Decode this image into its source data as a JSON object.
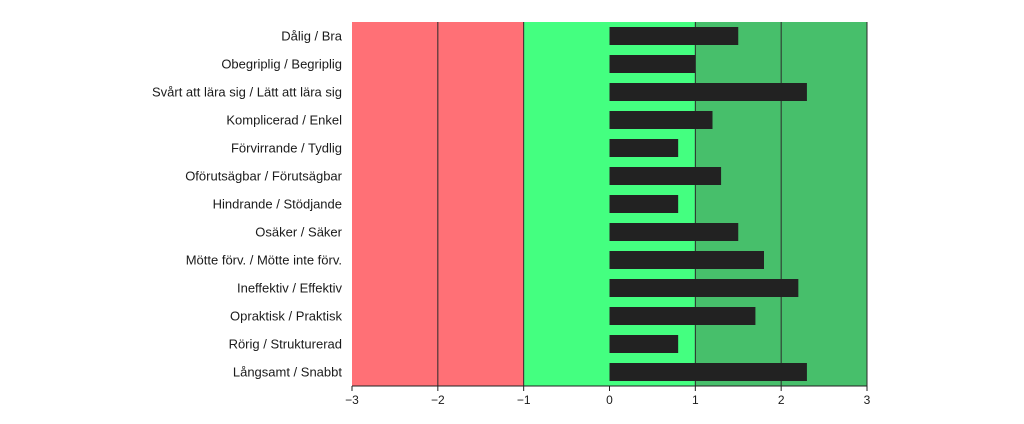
{
  "chart_data": {
    "type": "bar",
    "orientation": "horizontal",
    "categories": [
      "Dålig / Bra",
      "Obegriplig / Begriplig",
      "Svårt att lära sig / Lätt att lära sig",
      "Komplicerad / Enkel",
      "Förvirrande / Tydlig",
      "Oförutsägbar / Förutsägbar",
      "Hindrande / Stödjande",
      "Osäker / Säker",
      "Mötte förv. / Mötte inte förv.",
      "Ineffektiv / Effektiv",
      "Opraktisk / Praktisk",
      "Rörig / Strukturerad",
      "Långsamt / Snabbt"
    ],
    "values": [
      1.5,
      1.0,
      2.3,
      1.2,
      0.8,
      1.3,
      0.8,
      1.5,
      1.8,
      2.2,
      1.7,
      0.8,
      2.3
    ],
    "xlim": [
      -3,
      3
    ],
    "xticks": [
      "−3",
      "−2",
      "−1",
      "0",
      "1",
      "2",
      "3"
    ],
    "xtick_values": [
      -3,
      -2,
      -1,
      0,
      1,
      2,
      3
    ],
    "bands": [
      {
        "from": -3,
        "to": -1,
        "color": "#ff7076"
      },
      {
        "from": -1,
        "to": 1,
        "color": "#44ff80"
      },
      {
        "from": 1,
        "to": 3,
        "color": "#47bf6b"
      }
    ],
    "bar_color": "#222222",
    "gridlines": [
      -2,
      -1,
      1,
      2,
      3
    ],
    "title": "",
    "xlabel": "",
    "ylabel": ""
  }
}
